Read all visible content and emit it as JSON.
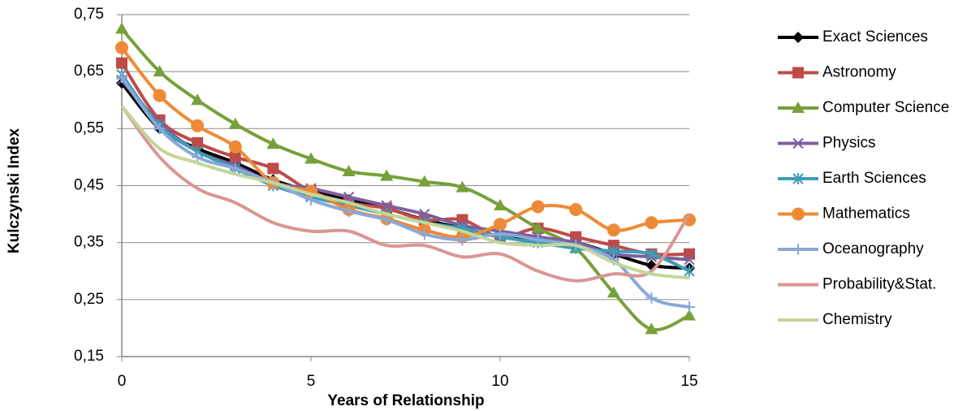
{
  "chart_data": {
    "type": "line",
    "x_label": "Years of Relationship",
    "y_label": "Kulczynski Index",
    "x": [
      0,
      1,
      2,
      3,
      4,
      5,
      6,
      7,
      8,
      9,
      10,
      11,
      12,
      13,
      14,
      15
    ],
    "xlim": [
      0,
      15
    ],
    "xticks": [
      0,
      5,
      10,
      15
    ],
    "ylim": [
      0.15,
      0.75
    ],
    "yticks": [
      {
        "value": 0.15,
        "label": "0,15"
      },
      {
        "value": 0.25,
        "label": "0,25"
      },
      {
        "value": 0.35,
        "label": "0,35"
      },
      {
        "value": 0.45,
        "label": "0,45"
      },
      {
        "value": 0.55,
        "label": "0,55"
      },
      {
        "value": 0.65,
        "label": "0,65"
      },
      {
        "value": 0.75,
        "label": "0,75"
      }
    ],
    "grid": true,
    "legend": "right",
    "series": [
      {
        "name": "Exact Sciences",
        "color": "#000000",
        "marker": "diamond",
        "values": [
          0.63,
          0.55,
          0.515,
          0.49,
          0.46,
          0.44,
          0.425,
          0.41,
          0.39,
          0.375,
          0.36,
          0.355,
          0.35,
          0.33,
          0.31,
          0.305
        ]
      },
      {
        "name": "Astronomy",
        "color": "#be4b48",
        "marker": "square",
        "values": [
          0.665,
          0.565,
          0.525,
          0.5,
          0.48,
          0.44,
          0.42,
          0.41,
          0.39,
          0.39,
          0.36,
          0.375,
          0.36,
          0.345,
          0.33,
          0.33
        ]
      },
      {
        "name": "Computer Science",
        "color": "#77a03a",
        "marker": "triangle",
        "values": [
          0.725,
          0.65,
          0.6,
          0.558,
          0.523,
          0.497,
          0.475,
          0.467,
          0.457,
          0.447,
          0.415,
          0.375,
          0.34,
          0.262,
          0.198,
          0.222
        ]
      },
      {
        "name": "Physics",
        "color": "#7d5fa0",
        "marker": "x",
        "values": [
          0.635,
          0.56,
          0.51,
          0.485,
          0.455,
          0.445,
          0.43,
          0.415,
          0.4,
          0.38,
          0.37,
          0.36,
          0.35,
          0.33,
          0.325,
          0.32
        ]
      },
      {
        "name": "Earth Sciences",
        "color": "#3c9db5",
        "marker": "star",
        "values": [
          0.645,
          0.555,
          0.51,
          0.48,
          0.45,
          0.43,
          0.415,
          0.4,
          0.385,
          0.375,
          0.36,
          0.35,
          0.34,
          0.335,
          0.33,
          0.3
        ]
      },
      {
        "name": "Mathematics",
        "color": "#ee8a35",
        "marker": "circle",
        "values": [
          0.692,
          0.608,
          0.555,
          0.518,
          0.455,
          0.44,
          0.408,
          0.392,
          0.372,
          0.36,
          0.382,
          0.413,
          0.408,
          0.372,
          0.385,
          0.39
        ]
      },
      {
        "name": "Oceanography",
        "color": "#8aa8d8",
        "marker": "plus",
        "values": [
          0.64,
          0.55,
          0.5,
          0.48,
          0.455,
          0.425,
          0.405,
          0.39,
          0.365,
          0.355,
          0.365,
          0.355,
          0.345,
          0.32,
          0.253,
          0.237
        ]
      },
      {
        "name": "Probability&Stat.",
        "color": "#d99694",
        "marker": "none",
        "values": [
          0.59,
          0.5,
          0.445,
          0.42,
          0.385,
          0.37,
          0.37,
          0.345,
          0.345,
          0.325,
          0.33,
          0.3,
          0.283,
          0.295,
          0.3,
          0.4
        ]
      },
      {
        "name": "Chemistry",
        "color": "#c3d69b",
        "marker": "none",
        "values": [
          0.59,
          0.515,
          0.49,
          0.47,
          0.455,
          0.435,
          0.42,
          0.4,
          0.385,
          0.37,
          0.35,
          0.345,
          0.345,
          0.315,
          0.295,
          0.288
        ]
      }
    ]
  }
}
